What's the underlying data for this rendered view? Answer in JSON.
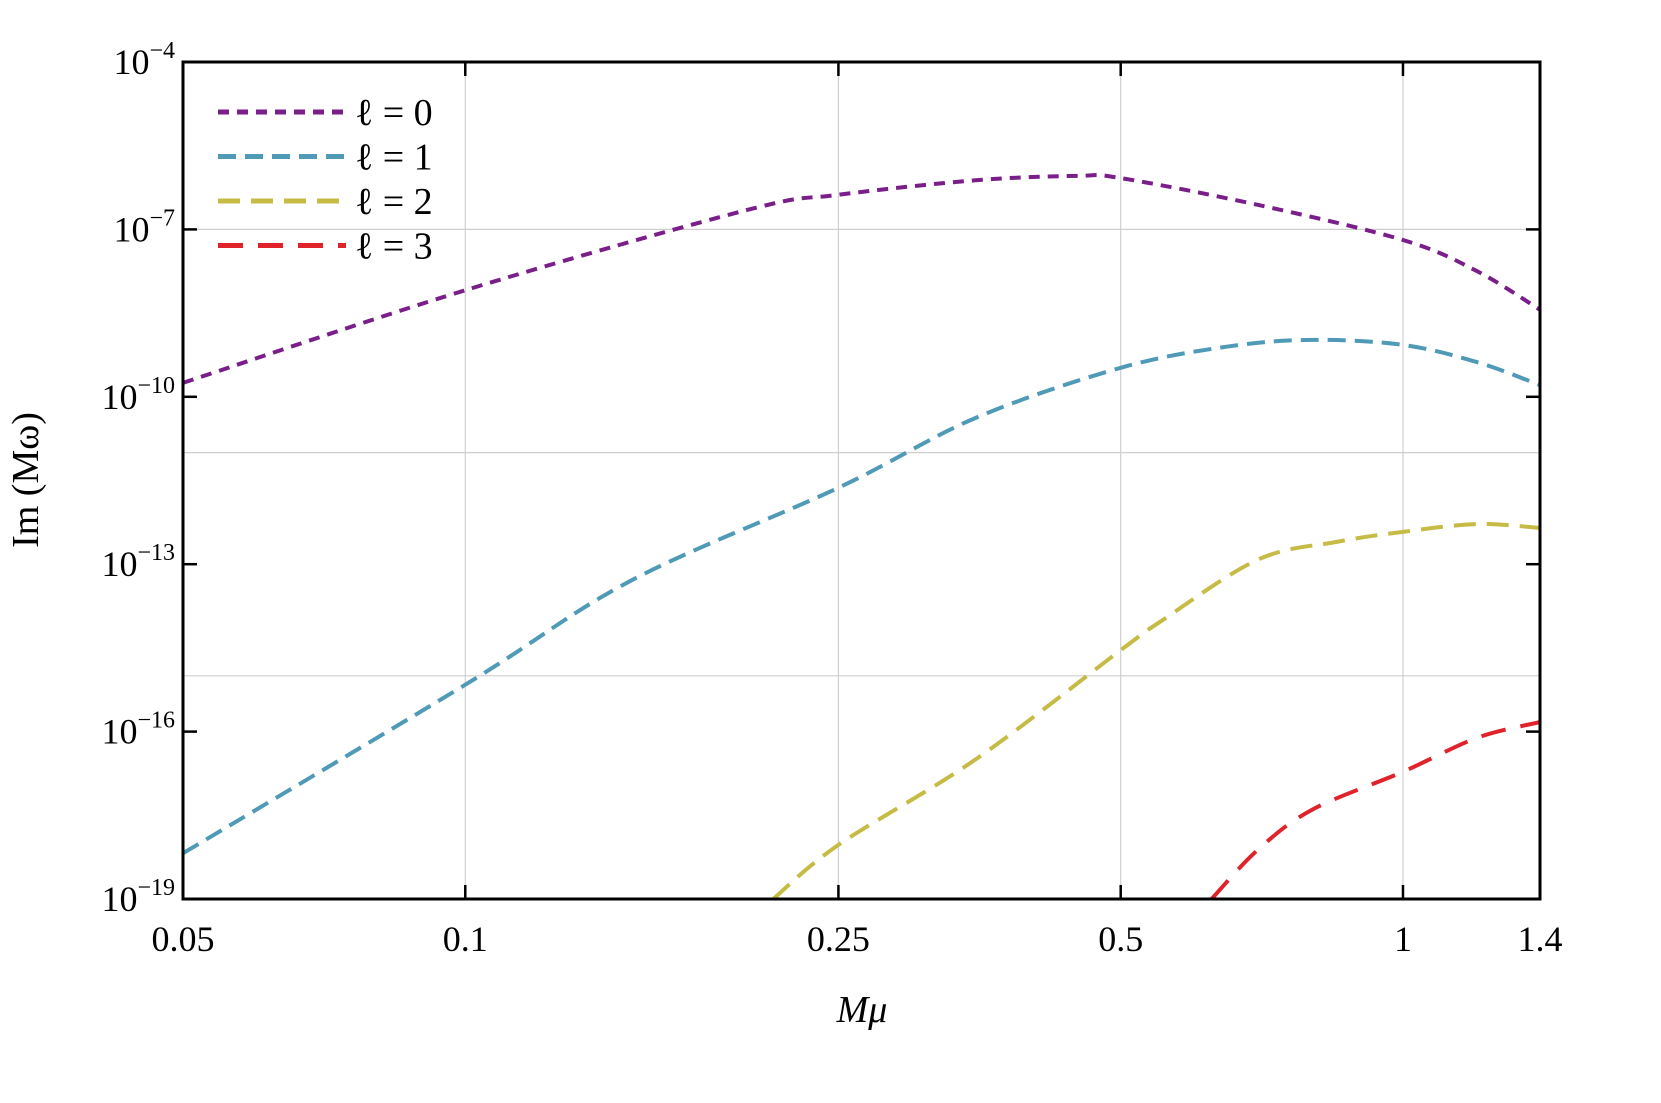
{
  "chart_data": {
    "type": "line",
    "title": "",
    "xlabel": "Mμ",
    "ylabel": "Im (Mω)",
    "xscale": "log",
    "yscale": "log",
    "xlim": [
      0.05,
      1.4
    ],
    "ylim": [
      1e-19,
      0.0001
    ],
    "x_ticks": [
      0.05,
      0.1,
      0.25,
      0.5,
      1,
      1.4
    ],
    "x_tick_labels": [
      "0.05",
      "0.1",
      "0.25",
      "0.5",
      "1",
      "1.4"
    ],
    "y_ticks_exp": [
      -4,
      -7,
      -10,
      -13,
      -16,
      -19
    ],
    "y_tick_base": "10",
    "x_grid": [
      0.1,
      0.25,
      0.5,
      1
    ],
    "y_grid_exp": [
      -7,
      -11,
      -15
    ],
    "grid": true,
    "legend_position": "top-left",
    "series": [
      {
        "name": "ℓ = 0",
        "color": "#7a1e8a",
        "dash": "11,8",
        "x": [
          0.05,
          0.1,
          0.2,
          0.25,
          0.35,
          0.45,
          0.5,
          0.7,
          1,
          1.2,
          1.4
        ],
        "log10_y": [
          -9.75,
          -8.09,
          -6.65,
          -6.38,
          -6.12,
          -6.04,
          -6.08,
          -6.56,
          -7.19,
          -7.75,
          -8.44
        ]
      },
      {
        "name": "ℓ = 1",
        "color": "#4f9ab7",
        "dash": "18,9",
        "x": [
          0.05,
          0.1,
          0.15,
          0.25,
          0.35,
          0.5,
          0.65,
          0.8,
          1,
          1.2,
          1.4
        ],
        "log10_y": [
          -18.18,
          -15.16,
          -13.3,
          -11.63,
          -10.38,
          -9.48,
          -9.1,
          -8.98,
          -9.07,
          -9.38,
          -9.79
        ]
      },
      {
        "name": "ℓ = 2",
        "color": "#c5bb45",
        "dash": "22,11",
        "x": [
          0.213,
          0.25,
          0.35,
          0.5,
          0.55,
          0.7,
          0.85,
          1,
          1.2,
          1.4
        ],
        "log10_y": [
          -19,
          -18.03,
          -16.5,
          -14.54,
          -14.04,
          -12.92,
          -12.6,
          -12.42,
          -12.28,
          -12.35
        ]
      },
      {
        "name": "ℓ = 3",
        "color": "#e0232a",
        "dash": "25,15",
        "x": [
          0.625,
          0.7,
          0.8,
          1,
          1.2,
          1.4
        ],
        "log10_y": [
          -19,
          -18.12,
          -17.4,
          -16.72,
          -16.11,
          -15.83
        ]
      }
    ]
  }
}
